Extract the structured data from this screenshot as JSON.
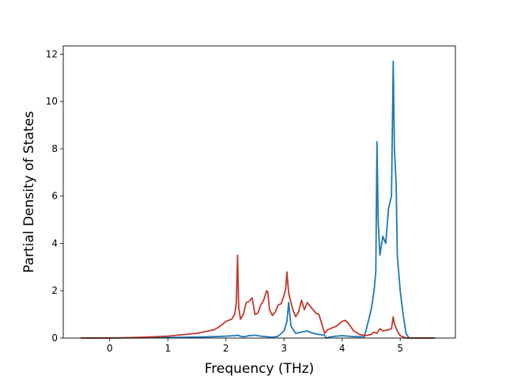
{
  "chart_data": {
    "type": "line",
    "title": "",
    "xlabel": "Frequency (THz)",
    "ylabel": "Partial Density of States",
    "xlim": [
      -0.8,
      5.95
    ],
    "ylim": [
      0,
      12.35
    ],
    "xticks": [
      0,
      1,
      2,
      3,
      4,
      5
    ],
    "yticks": [
      0,
      2,
      4,
      6,
      8,
      10,
      12
    ],
    "grid": false,
    "series": [
      {
        "color": "#1f77b4",
        "x": [
          -0.5,
          0,
          0.5,
          1.0,
          1.5,
          1.8,
          2.0,
          2.15,
          2.2,
          2.25,
          2.3,
          2.4,
          2.5,
          2.6,
          2.7,
          2.8,
          2.9,
          3.0,
          3.05,
          3.08,
          3.12,
          3.2,
          3.3,
          3.4,
          3.5,
          3.6,
          3.7,
          3.72,
          3.8,
          3.9,
          4.0,
          4.2,
          4.38,
          4.42,
          4.45,
          4.5,
          4.55,
          4.58,
          4.6,
          4.62,
          4.65,
          4.7,
          4.75,
          4.8,
          4.85,
          4.88,
          4.9,
          4.93,
          4.95,
          5.0,
          5.05,
          5.1,
          5.15,
          5.6
        ],
        "y": [
          0,
          0,
          0.01,
          0.02,
          0.04,
          0.06,
          0.08,
          0.1,
          0.12,
          0.08,
          0.05,
          0.1,
          0.12,
          0.08,
          0.06,
          0.03,
          0.08,
          0.3,
          0.7,
          1.5,
          0.5,
          0.2,
          0.25,
          0.3,
          0.2,
          0.15,
          0.12,
          0.0,
          0.05,
          0.08,
          0.1,
          0.06,
          0.05,
          0.4,
          0.7,
          1.2,
          2.0,
          2.8,
          8.3,
          5.0,
          3.5,
          4.3,
          4.0,
          5.5,
          6.0,
          11.7,
          8.0,
          6.5,
          3.5,
          2.0,
          1.0,
          0.2,
          0.0,
          0.0
        ]
      },
      {
        "color": "#c0392b",
        "x": [
          -0.5,
          0,
          0.5,
          1.0,
          1.5,
          1.8,
          1.9,
          2.0,
          2.1,
          2.15,
          2.18,
          2.2,
          2.22,
          2.25,
          2.3,
          2.35,
          2.4,
          2.45,
          2.5,
          2.55,
          2.6,
          2.65,
          2.7,
          2.72,
          2.75,
          2.8,
          2.85,
          2.9,
          2.95,
          3.0,
          3.03,
          3.05,
          3.08,
          3.12,
          3.15,
          3.2,
          3.25,
          3.3,
          3.35,
          3.4,
          3.45,
          3.5,
          3.55,
          3.6,
          3.65,
          3.7,
          3.75,
          3.8,
          3.9,
          4.0,
          4.05,
          4.1,
          4.2,
          4.3,
          4.4,
          4.5,
          4.55,
          4.6,
          4.65,
          4.7,
          4.8,
          4.85,
          4.88,
          4.9,
          4.95,
          5.0,
          5.05,
          5.1,
          5.6
        ],
        "y": [
          0,
          0,
          0.03,
          0.08,
          0.2,
          0.35,
          0.5,
          0.7,
          0.8,
          1.0,
          1.5,
          3.5,
          1.3,
          0.8,
          1.0,
          1.5,
          1.55,
          1.7,
          1.0,
          1.05,
          1.4,
          1.6,
          2.0,
          1.95,
          1.2,
          0.95,
          1.1,
          1.4,
          1.45,
          1.8,
          2.1,
          2.8,
          1.9,
          1.5,
          1.2,
          0.9,
          1.1,
          1.6,
          1.2,
          1.5,
          1.35,
          1.2,
          1.05,
          1.0,
          0.6,
          0.2,
          0.35,
          0.4,
          0.5,
          0.7,
          0.75,
          0.65,
          0.3,
          0.15,
          0.1,
          0.15,
          0.25,
          0.2,
          0.4,
          0.3,
          0.35,
          0.4,
          0.9,
          0.6,
          0.3,
          0.1,
          0.05,
          0.0,
          0.0
        ]
      }
    ]
  }
}
